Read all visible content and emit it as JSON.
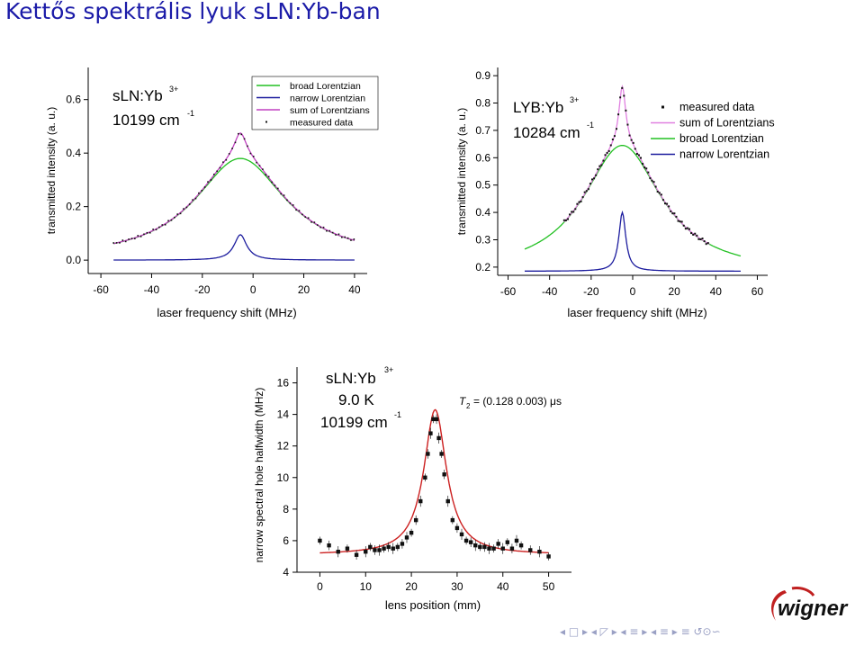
{
  "slide": {
    "title": "Kettős spektrális lyuk sLN:Yb-ban",
    "logo_text": "wigner",
    "nav_glyphs": "◂ □ ▸ ◂ ◸ ▸ ◂ ≡ ▸ ◂ ≡ ▸   ≡   ↺⊙∽",
    "colors": {
      "title": "#1b1ba8",
      "broad": "#22c022",
      "narrow": "#1c1c9e",
      "sum": "#c040c0",
      "fit": "#cc2020"
    }
  },
  "chart_data": [
    {
      "type": "line",
      "panel": "top-left",
      "annotations": [
        "sLN:Yb",
        "3+",
        "10199 cm",
        "-1"
      ],
      "xlabel": "laser frequency shift (MHz)",
      "ylabel": "transmitted intensity (a. u.)",
      "xlim": [
        -65,
        45
      ],
      "ylim": [
        -0.05,
        0.72
      ],
      "xticks": [
        "-60",
        "-40",
        "-20",
        "0",
        "20",
        "40"
      ],
      "yticks": [
        "0.0",
        "0.2",
        "0.4",
        "0.6"
      ],
      "legend_position": "top-right",
      "series": [
        {
          "name": "broad Lorentzian",
          "model": "lorentzian",
          "x_range": [
            -55,
            40
          ],
          "baseline": 0.0,
          "amplitude": 0.38,
          "center": -5,
          "hwhm": 22,
          "color": "#22c022"
        },
        {
          "name": "narrow Lorentzian",
          "model": "lorentzian",
          "x_range": [
            -55,
            40
          ],
          "baseline": 0.0,
          "amplitude": 0.095,
          "center": -5,
          "hwhm": 3,
          "color": "#1c1c9e"
        },
        {
          "name": "sum of Lorentzians",
          "model": "sum",
          "x_range": [
            -55,
            40
          ],
          "color": "#c040c0"
        },
        {
          "name": "measured data",
          "model": "points",
          "x_range": [
            -55,
            40
          ],
          "color": "#111111"
        }
      ]
    },
    {
      "type": "line",
      "panel": "top-right",
      "annotations": [
        "LYB:Yb",
        "3+",
        "10284 cm",
        "-1"
      ],
      "xlabel": "laser frequency shift (MHz)",
      "ylabel": "transmitted intensity (a. u.)",
      "xlim": [
        -65,
        65
      ],
      "ylim": [
        0.17,
        0.93
      ],
      "xticks": [
        "-60",
        "-40",
        "-20",
        "0",
        "20",
        "40",
        "60"
      ],
      "yticks": [
        "0.2",
        "0.3",
        "0.4",
        "0.5",
        "0.6",
        "0.7",
        "0.8",
        "0.9"
      ],
      "legend_position": "top-right",
      "series": [
        {
          "name": "measured data",
          "model": "points",
          "x_range": [
            -33,
            37
          ],
          "color": "#111111"
        },
        {
          "name": "sum of Lorentzians",
          "model": "sum",
          "x_range": [
            -33,
            37
          ],
          "color": "#e080e0"
        },
        {
          "name": "broad Lorentzian",
          "model": "lorentzian",
          "x_range": [
            -52,
            52
          ],
          "baseline": 0.175,
          "amplitude": 0.47,
          "center": -5,
          "hwhm": 23,
          "color": "#22c022"
        },
        {
          "name": "narrow Lorentzian",
          "model": "lorentzian",
          "x_range": [
            -52,
            52
          ],
          "baseline": 0.185,
          "amplitude": 0.215,
          "center": -5,
          "hwhm": 2,
          "color": "#1c1c9e"
        }
      ]
    },
    {
      "type": "scatter",
      "panel": "bottom",
      "annotations": [
        "sLN:Yb",
        "3+",
        "9.0 K",
        "10199 cm",
        "-1",
        "T",
        "2",
        "= (0.128  0.003) μs"
      ],
      "xlabel": "lens position (mm)",
      "ylabel": "narrow spectral hole halfwidth (MHz)",
      "xlim": [
        -5,
        55
      ],
      "ylim": [
        4,
        17
      ],
      "xticks": [
        "0",
        "10",
        "20",
        "30",
        "40",
        "50"
      ],
      "yticks": [
        "4",
        "6",
        "8",
        "10",
        "12",
        "14",
        "16"
      ],
      "fit": {
        "model": "lorentzian",
        "baseline": 5.1,
        "amplitude": 9.2,
        "center": 25.2,
        "hwhm": 3.0,
        "color": "#cc2020"
      },
      "points": [
        [
          0,
          6.0
        ],
        [
          2,
          5.7
        ],
        [
          4,
          5.3
        ],
        [
          6,
          5.5
        ],
        [
          8,
          5.1
        ],
        [
          10,
          5.3
        ],
        [
          11,
          5.6
        ],
        [
          12,
          5.4
        ],
        [
          13,
          5.4
        ],
        [
          14,
          5.5
        ],
        [
          15,
          5.6
        ],
        [
          16,
          5.5
        ],
        [
          17,
          5.6
        ],
        [
          18,
          5.8
        ],
        [
          19,
          6.2
        ],
        [
          20,
          6.5
        ],
        [
          21,
          7.3
        ],
        [
          22,
          8.5
        ],
        [
          23,
          10.0
        ],
        [
          23.6,
          11.5
        ],
        [
          24.2,
          12.8
        ],
        [
          24.8,
          13.7
        ],
        [
          25.5,
          13.7
        ],
        [
          26,
          12.5
        ],
        [
          26.6,
          11.5
        ],
        [
          27.2,
          10.2
        ],
        [
          28,
          8.5
        ],
        [
          29,
          7.3
        ],
        [
          30,
          6.8
        ],
        [
          31,
          6.4
        ],
        [
          32,
          6.0
        ],
        [
          33,
          5.9
        ],
        [
          34,
          5.7
        ],
        [
          35,
          5.6
        ],
        [
          36,
          5.6
        ],
        [
          37,
          5.5
        ],
        [
          38,
          5.5
        ],
        [
          39,
          5.8
        ],
        [
          40,
          5.5
        ],
        [
          41,
          5.9
        ],
        [
          42,
          5.5
        ],
        [
          43,
          6.0
        ],
        [
          44,
          5.7
        ],
        [
          46,
          5.4
        ],
        [
          48,
          5.3
        ],
        [
          50,
          5.0
        ]
      ]
    }
  ]
}
